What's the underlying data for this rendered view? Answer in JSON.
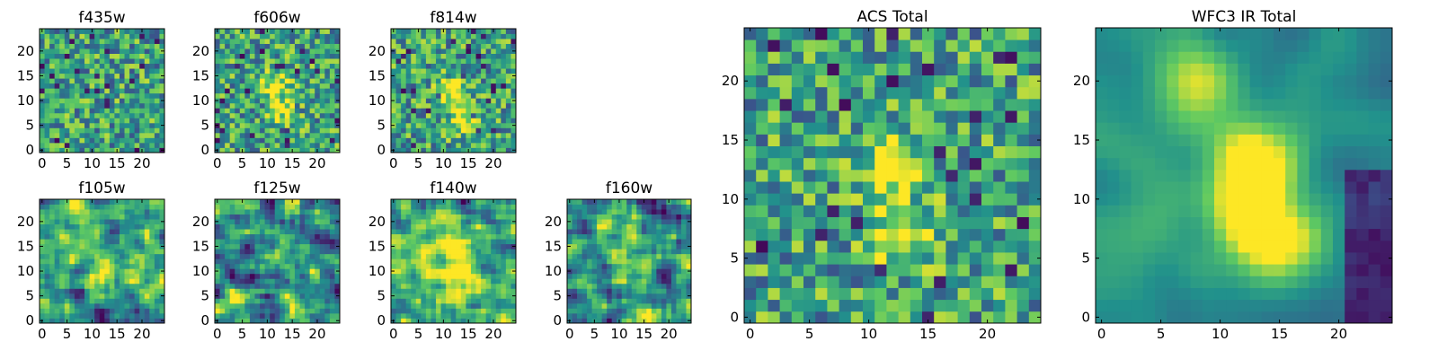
{
  "figure": {
    "background": "#ffffff",
    "colormap": "viridis",
    "colormap_stops": [
      "#440154",
      "#3b528b",
      "#21918c",
      "#5ec962",
      "#fde725"
    ]
  },
  "chart_data": [
    {
      "type": "heatmap",
      "title": "f435w",
      "grid_size": [
        25,
        25
      ],
      "xlim": [
        -0.5,
        24.5
      ],
      "ylim": [
        -0.5,
        24.5
      ],
      "xticks": [
        0,
        5,
        10,
        15,
        20
      ],
      "yticks": [
        0,
        5,
        10,
        15,
        20
      ],
      "pattern": "noise",
      "seed": 3,
      "blobs": []
    },
    {
      "type": "heatmap",
      "title": "f606w",
      "grid_size": [
        25,
        25
      ],
      "xlim": [
        -0.5,
        24.5
      ],
      "ylim": [
        -0.5,
        24.5
      ],
      "xticks": [
        0,
        5,
        10,
        15,
        20
      ],
      "yticks": [
        0,
        5,
        10,
        15,
        20
      ],
      "pattern": "noise",
      "seed": 7,
      "blobs": [
        [
          12,
          13,
          2,
          0.45
        ],
        [
          13,
          7,
          2,
          0.35
        ]
      ]
    },
    {
      "type": "heatmap",
      "title": "f814w",
      "grid_size": [
        25,
        25
      ],
      "xlim": [
        -0.5,
        24.5
      ],
      "ylim": [
        -0.5,
        24.5
      ],
      "xticks": [
        0,
        5,
        10,
        15,
        20
      ],
      "yticks": [
        0,
        5,
        10,
        15,
        20
      ],
      "pattern": "noise",
      "seed": 11,
      "blobs": [
        [
          12,
          12,
          2,
          0.5
        ],
        [
          14,
          6,
          2,
          0.45
        ]
      ]
    },
    {
      "type": "heatmap",
      "title": "f105w",
      "grid_size": [
        25,
        25
      ],
      "xlim": [
        -0.5,
        24.5
      ],
      "ylim": [
        -0.5,
        24.5
      ],
      "xticks": [
        0,
        5,
        10,
        15,
        20
      ],
      "yticks": [
        0,
        5,
        10,
        15,
        20
      ],
      "pattern": "smooth",
      "seed": 17,
      "blobs": [
        [
          9,
          20,
          2.5,
          0.4
        ],
        [
          14,
          8,
          3,
          0.4
        ],
        [
          5,
          15,
          3,
          0.3
        ]
      ]
    },
    {
      "type": "heatmap",
      "title": "f125w",
      "grid_size": [
        25,
        25
      ],
      "xlim": [
        -0.5,
        24.5
      ],
      "ylim": [
        -0.5,
        24.5
      ],
      "xticks": [
        0,
        5,
        10,
        15,
        20
      ],
      "yticks": [
        0,
        5,
        10,
        15,
        20
      ],
      "pattern": "smooth",
      "seed": 23,
      "blobs": [
        [
          16,
          1,
          2,
          0.45
        ],
        [
          3,
          3,
          2,
          0.35
        ],
        [
          12,
          13,
          2.5,
          0.3
        ]
      ]
    },
    {
      "type": "heatmap",
      "title": "f140w",
      "grid_size": [
        25,
        25
      ],
      "xlim": [
        -0.5,
        24.5
      ],
      "ylim": [
        -0.5,
        24.5
      ],
      "xticks": [
        0,
        5,
        10,
        15,
        20
      ],
      "yticks": [
        0,
        5,
        10,
        15,
        20
      ],
      "pattern": "smooth",
      "seed": 29,
      "blobs": [
        [
          12,
          14,
          3,
          0.45
        ],
        [
          13,
          9,
          3,
          0.4
        ],
        [
          4,
          12,
          2.5,
          0.3
        ]
      ]
    },
    {
      "type": "heatmap",
      "title": "f160w",
      "grid_size": [
        25,
        25
      ],
      "xlim": [
        -0.5,
        24.5
      ],
      "ylim": [
        -0.5,
        24.5
      ],
      "xticks": [
        0,
        5,
        10,
        15,
        20
      ],
      "yticks": [
        0,
        5,
        10,
        15,
        20
      ],
      "pattern": "smooth",
      "seed": 31,
      "blobs": [
        [
          8,
          20,
          2.5,
          0.35
        ],
        [
          15,
          1,
          2,
          0.4
        ],
        [
          12,
          12,
          3,
          0.3
        ]
      ]
    },
    {
      "type": "heatmap",
      "title": "ACS Total",
      "grid_size": [
        25,
        25
      ],
      "xlim": [
        -0.5,
        24.5
      ],
      "ylim": [
        -0.5,
        24.5
      ],
      "xticks": [
        0,
        5,
        10,
        15,
        20
      ],
      "yticks": [
        0,
        5,
        10,
        15,
        20
      ],
      "pattern": "noise",
      "seed": 41,
      "blobs": [
        [
          12,
          13,
          1.8,
          0.55
        ],
        [
          13,
          7,
          1.8,
          0.45
        ]
      ]
    },
    {
      "type": "heatmap",
      "title": "WFC3 IR Total",
      "grid_size": [
        25,
        25
      ],
      "xlim": [
        -0.5,
        24.5
      ],
      "ylim": [
        -0.5,
        24.5
      ],
      "xticks": [
        0,
        5,
        10,
        15,
        20
      ],
      "yticks": [
        0,
        5,
        10,
        15,
        20
      ],
      "pattern": "ir_total",
      "seed": 53,
      "blobs": [
        [
          9,
          20,
          2.2,
          0.5
        ],
        [
          13,
          13,
          2.2,
          0.55
        ],
        [
          14,
          7,
          2.5,
          0.6
        ],
        [
          12,
          10,
          2.5,
          0.35
        ]
      ]
    }
  ]
}
